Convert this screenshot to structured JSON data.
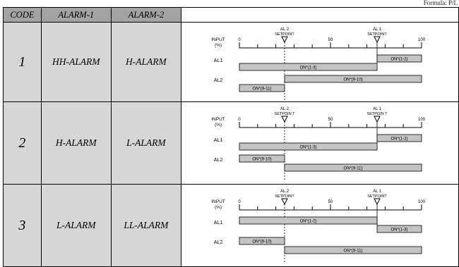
{
  "page_ref": "Formula: P/L",
  "headers": {
    "code": "CODE",
    "alarm1": "ALARM-1",
    "alarm2": "ALARM-2"
  },
  "rows": [
    {
      "code": "1",
      "alarm1": "HH-ALARM",
      "alarm2": "H-ALARM",
      "diagram": {
        "al2_setpoint_label": [
          "AL 2",
          "SETPOINT"
        ],
        "al1_setpoint_label": [
          "AL 1",
          "SETPOINT"
        ],
        "input_label": [
          "INPUT",
          "(%)"
        ],
        "scale": [
          "0",
          "50",
          "100"
        ],
        "al1_label": "AL1",
        "al2_label": "AL2",
        "al1_bars": [
          {
            "label": "ON*(1-3)",
            "level": "low"
          },
          {
            "label": "ON*(1-2)",
            "level": "high"
          }
        ],
        "al2_bars": [
          {
            "label": "ON*(9-11)",
            "level": "low"
          },
          {
            "label": "ON*(9-10)",
            "level": "high"
          }
        ]
      }
    },
    {
      "code": "2",
      "alarm1": "H-ALARM",
      "alarm2": "L-ALARM",
      "diagram": {
        "al2_setpoint_label": [
          "AL 2",
          "SETPOIN  T"
        ],
        "al1_setpoint_label": [
          "AL 1",
          "SETPOIN  T"
        ],
        "input_label": [
          "INPUT",
          "(%)"
        ],
        "scale": [
          "0",
          "50",
          "100"
        ],
        "al1_label": "AL1",
        "al2_label": "AL2",
        "al1_bars": [
          {
            "label": "ON*(1-3)",
            "level": "low"
          },
          {
            "label": "ON*(1-2)",
            "level": "high"
          }
        ],
        "al2_bars": [
          {
            "label": "ON*(9-10)",
            "level": "high"
          },
          {
            "label": "ON*(9-11)",
            "level": "low"
          }
        ]
      }
    },
    {
      "code": "3",
      "alarm1": "L-ALARM",
      "alarm2": "LL-ALARM",
      "diagram": {
        "al2_setpoint_label": [
          "AL 2",
          "SETPOINT"
        ],
        "al1_setpoint_label": [
          "AL 1",
          "SETPOINT"
        ],
        "input_label": [
          "INPUT",
          "(%)"
        ],
        "scale": [
          "0",
          "50",
          "100"
        ],
        "al1_label": "AL1",
        "al2_label": "AL2",
        "al1_bars": [
          {
            "label": "ON*(1-2)",
            "level": "high"
          },
          {
            "label": "ON*(1-3)",
            "level": "low"
          }
        ],
        "al2_bars": [
          {
            "label": "ON*(9-10)",
            "level": "high"
          },
          {
            "label": "ON*(9-11)",
            "level": "low"
          }
        ]
      }
    }
  ]
}
